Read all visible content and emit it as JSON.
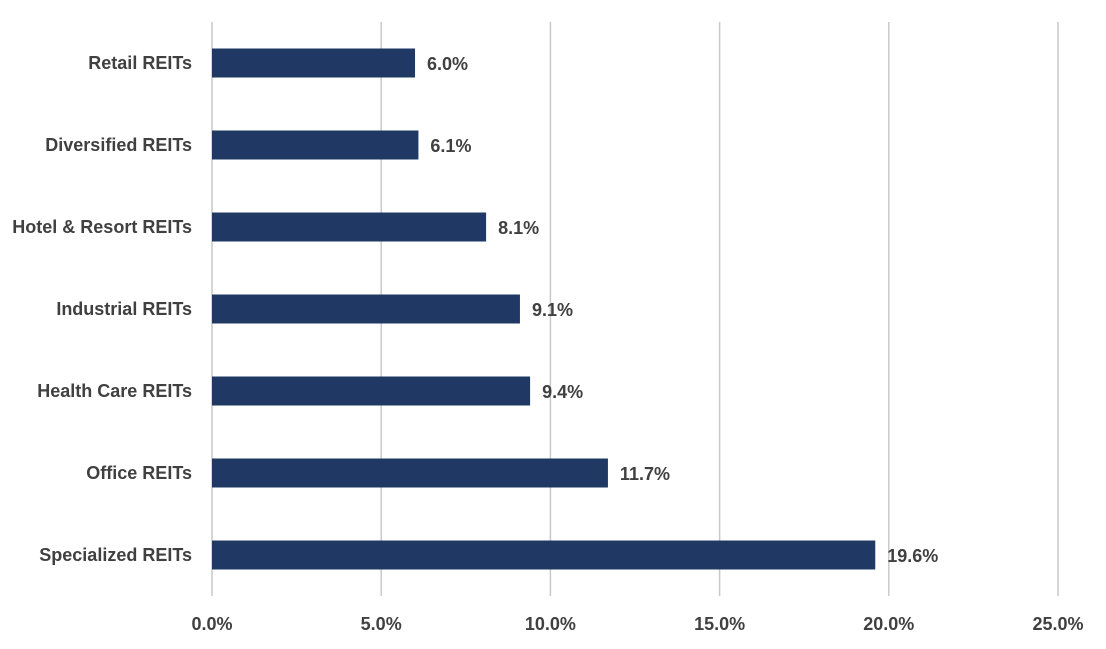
{
  "chart_data": {
    "type": "bar",
    "orientation": "horizontal",
    "categories": [
      "Retail REITs",
      "Diversified REITs",
      "Hotel & Resort REITs",
      "Industrial REITs",
      "Health Care REITs",
      "Office REITs",
      "Specialized REITs"
    ],
    "values": [
      6.0,
      6.1,
      8.1,
      9.1,
      9.4,
      11.7,
      19.6
    ],
    "data_labels": [
      "6.0%",
      "6.1%",
      "8.1%",
      "9.1%",
      "9.4%",
      "11.7%",
      "19.6%"
    ],
    "xlim": [
      0,
      25
    ],
    "xticks": [
      0,
      5,
      10,
      15,
      20,
      25
    ],
    "xtick_labels": [
      "0.0%",
      "5.0%",
      "10.0%",
      "15.0%",
      "20.0%",
      "25.0%"
    ],
    "title": "",
    "xlabel": "",
    "ylabel": "",
    "grid": "vertical",
    "legend": "none",
    "bar_color": "#1f3864"
  }
}
